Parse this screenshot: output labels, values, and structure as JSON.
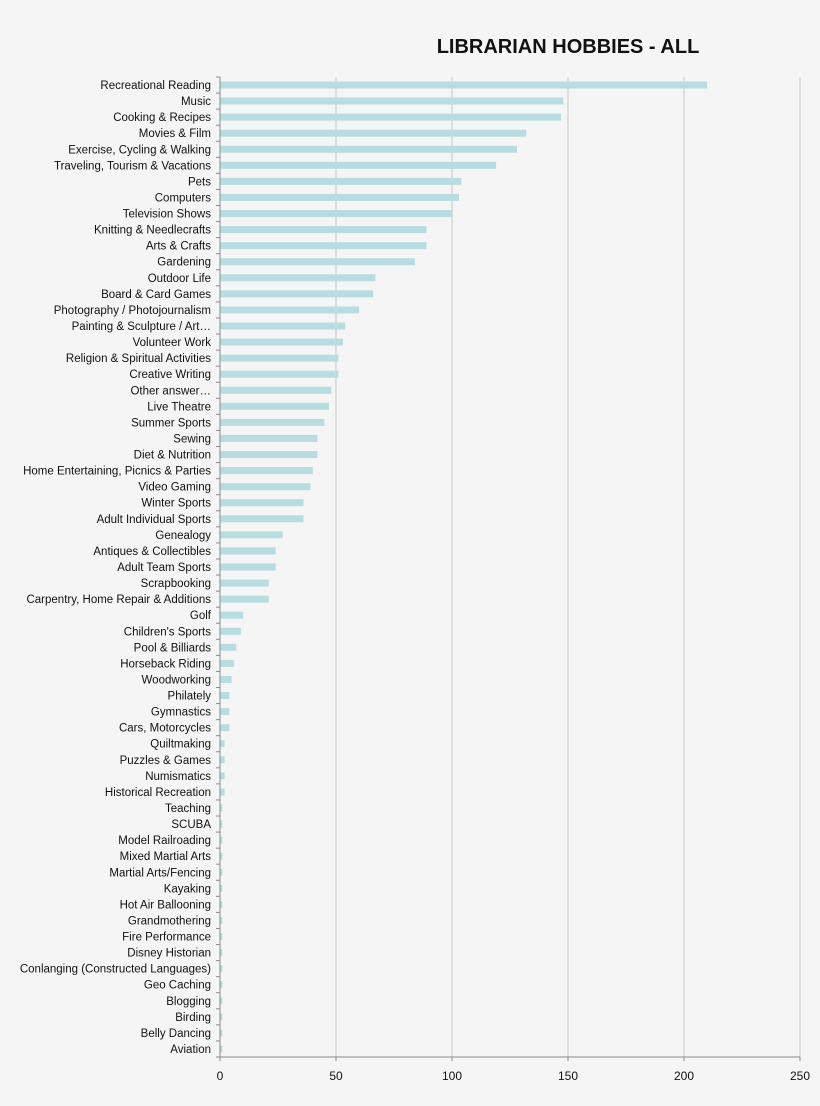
{
  "chart_data": {
    "type": "bar",
    "orientation": "horizontal",
    "title": "LIBRARIAN HOBBIES - ALL",
    "xlabel": "",
    "ylabel": "",
    "xlim": [
      0,
      250
    ],
    "xticks": [
      0,
      50,
      100,
      150,
      200,
      250
    ],
    "grid": true,
    "bar_color": "#b8dde0",
    "categories": [
      "Recreational Reading",
      "Music",
      "Cooking & Recipes",
      "Movies & Film",
      "Exercise, Cycling & Walking",
      "Traveling, Tourism & Vacations",
      "Pets",
      "Computers",
      "Television Shows",
      "Knitting & Needlecrafts",
      "Arts & Crafts",
      "Gardening",
      "Outdoor Life",
      "Board & Card Games",
      "Photography / Photojournalism",
      "Painting & Sculpture / Art…",
      "Volunteer Work",
      "Religion & Spiritual Activities",
      "Creative Writing",
      "Other answer…",
      "Live Theatre",
      "Summer Sports",
      "Sewing",
      "Diet & Nutrition",
      "Home Entertaining, Picnics & Parties",
      "Video Gaming",
      "Winter Sports",
      "Adult Individual Sports",
      "Genealogy",
      "Antiques & Collectibles",
      "Adult Team Sports",
      "Scrapbooking",
      "Carpentry, Home Repair & Additions",
      "Golf",
      "Children's Sports",
      "Pool & Billiards",
      "Horseback Riding",
      "Woodworking",
      "Philately",
      "Gymnastics",
      "Cars, Motorcycles",
      "Quiltmaking",
      "Puzzles & Games",
      "Numismatics",
      "Historical Recreation",
      "Teaching",
      "SCUBA",
      "Model Railroading",
      "Mixed Martial Arts",
      "Martial Arts/Fencing",
      "Kayaking",
      "Hot Air Ballooning",
      "Grandmothering",
      "Fire Performance",
      "Disney Historian",
      "Conlanging (Constructed Languages)",
      "Geo Caching",
      "Blogging",
      "Birding",
      "Belly Dancing",
      "Aviation"
    ],
    "values": [
      210,
      148,
      147,
      132,
      128,
      119,
      104,
      103,
      100,
      89,
      89,
      84,
      67,
      66,
      60,
      54,
      53,
      51,
      51,
      48,
      47,
      45,
      42,
      42,
      40,
      39,
      36,
      36,
      27,
      24,
      24,
      21,
      21,
      10,
      9,
      7,
      6,
      5,
      4,
      4,
      4,
      2,
      2,
      2,
      2,
      1,
      1,
      1,
      1,
      1,
      1,
      1,
      1,
      1,
      1,
      1,
      1,
      1,
      1,
      1,
      1
    ]
  }
}
